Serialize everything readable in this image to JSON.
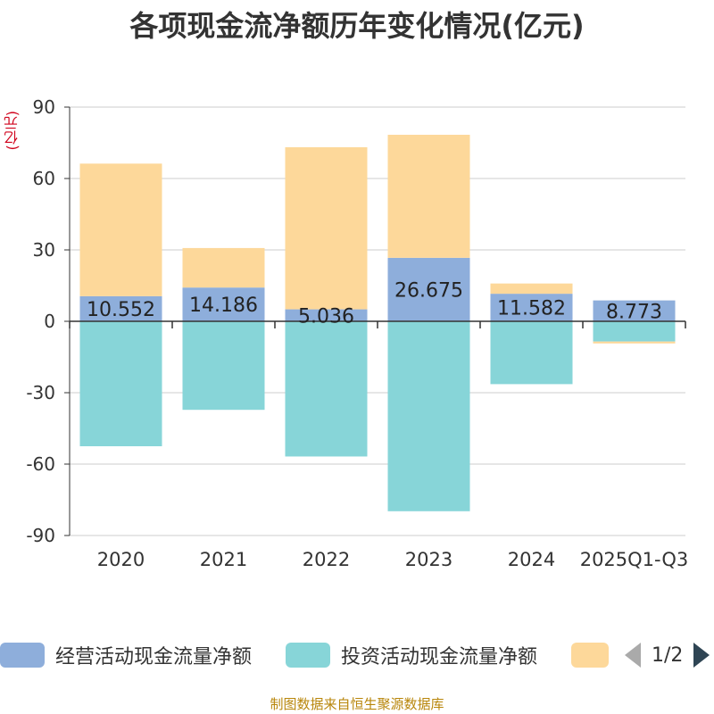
{
  "chart_data": {
    "type": "bar",
    "stacked": true,
    "title": "各项现金流净额历年变化情况(亿元)",
    "ylabel": "(亿元)",
    "categories": [
      "2020",
      "2021",
      "2022",
      "2023",
      "2024",
      "2025Q1-Q3"
    ],
    "ylim": [
      -90,
      90
    ],
    "yticks": [
      90,
      60,
      30,
      0,
      -30,
      -60,
      -90
    ],
    "grid": true,
    "series": [
      {
        "name": "经营活动现金流量净额",
        "color": "#8eaedb",
        "values": [
          10.552,
          14.186,
          5.036,
          26.675,
          11.582,
          8.773
        ],
        "labels": [
          "10.552",
          "14.186",
          "5.036",
          "26.675",
          "11.582",
          "8.773"
        ]
      },
      {
        "name": "投资活动现金流量净额",
        "color": "#87d5d8",
        "values": [
          -52.5,
          -37.2,
          -56.8,
          -79.8,
          -26.4,
          -8.5
        ]
      },
      {
        "name": "",
        "color": "#fdd89a",
        "values": [
          55.7,
          16.6,
          68.1,
          51.7,
          4.3,
          -0.8
        ]
      }
    ],
    "legend_position": "bottom"
  },
  "legend": {
    "items": [
      {
        "label": "经营活动现金流量净额",
        "color": "#8eaedb"
      },
      {
        "label": "投资活动现金流量净额",
        "color": "#87d5d8"
      },
      {
        "label": "",
        "color": "#fdd89a"
      }
    ],
    "page": "1/2"
  },
  "source": "制图数据来自恒生聚源数据库"
}
